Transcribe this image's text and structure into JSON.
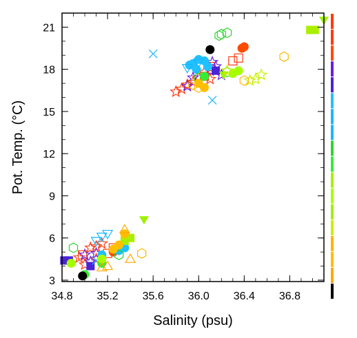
{
  "chart_data": {
    "type": "scatter",
    "xlabel": "Salinity (psu)",
    "ylabel": "Pot. Temp. (°C)",
    "xlim": [
      34.8,
      37.1
    ],
    "ylim": [
      2.9,
      22
    ],
    "xticks": [
      "34.8",
      "35.2",
      "35.6",
      "36.0",
      "36.4",
      "36.8"
    ],
    "yticks": [
      "3",
      "6",
      "9",
      "12",
      "15",
      "18",
      "21"
    ],
    "xtick_values": [
      34.8,
      35.2,
      35.6,
      36.0,
      36.4,
      36.8
    ],
    "ytick_values": [
      3,
      6,
      9,
      12,
      15,
      18,
      21
    ],
    "grid": false,
    "legend_position": "right, outside plot (tiny color swatches)",
    "series": [
      {
        "name": "",
        "color": "#ff3b10",
        "marker": "star",
        "points": [
          [
            35.05,
            5.3
          ],
          [
            35.1,
            5.4
          ],
          [
            35.0,
            4.1
          ],
          [
            34.95,
            4.6
          ],
          [
            35.15,
            5.6
          ],
          [
            35.1,
            4.5
          ],
          [
            35.85,
            16.6
          ],
          [
            35.95,
            17.1
          ],
          [
            36.05,
            17.8
          ],
          [
            36.1,
            17.3
          ],
          [
            35.8,
            16.4
          ],
          [
            35.9,
            16.9
          ],
          [
            36.0,
            17.4
          ]
        ]
      },
      {
        "name": "",
        "color": "#ff3b10",
        "marker": "open-square",
        "points": [
          [
            35.2,
            4.9
          ],
          [
            35.25,
            5.3
          ],
          [
            34.98,
            4.8
          ],
          [
            36.35,
            18.8
          ],
          [
            36.05,
            17.5
          ],
          [
            36.1,
            18.2
          ],
          [
            36.3,
            18.6
          ]
        ]
      },
      {
        "name": "",
        "color": "#ff4a00",
        "marker": "filled-circle",
        "points": [
          [
            36.4,
            19.6
          ],
          [
            35.25,
            5.0
          ],
          [
            36.38,
            19.5
          ]
        ]
      },
      {
        "name": "",
        "color": "#6a1fe0",
        "marker": "star",
        "points": [
          [
            35.0,
            4.8
          ],
          [
            35.05,
            4.3
          ],
          [
            35.1,
            4.9
          ],
          [
            35.95,
            17.4
          ],
          [
            36.1,
            17.9
          ],
          [
            36.15,
            18.2
          ],
          [
            35.9,
            16.8
          ],
          [
            36.2,
            17.6
          ],
          [
            36.12,
            18.5
          ]
        ]
      },
      {
        "name": "",
        "color": "#4a22d8",
        "marker": "filled-square",
        "points": [
          [
            34.82,
            4.4
          ],
          [
            34.86,
            4.4
          ],
          [
            35.05,
            4.0
          ],
          [
            36.15,
            17.9
          ]
        ]
      },
      {
        "name": "",
        "color": "#21c0ff",
        "marker": "filled-circle",
        "points": [
          [
            35.3,
            5.1
          ],
          [
            35.35,
            5.3
          ],
          [
            35.15,
            4.8
          ],
          [
            35.95,
            18.4
          ],
          [
            36.0,
            18.7
          ],
          [
            36.05,
            18.6
          ],
          [
            36.08,
            18.2
          ],
          [
            35.98,
            18.0
          ],
          [
            35.92,
            18.3
          ]
        ]
      },
      {
        "name": "",
        "color": "#19b7ff",
        "marker": "open-triangle-down",
        "points": [
          [
            35.15,
            6.1
          ],
          [
            35.2,
            6.3
          ],
          [
            35.1,
            5.8
          ],
          [
            35.9,
            18.1
          ],
          [
            36.0,
            18.5
          ]
        ]
      },
      {
        "name": "",
        "color": "#19b7ff",
        "marker": "x",
        "points": [
          [
            35.6,
            19.1
          ],
          [
            36.12,
            15.8
          ],
          [
            35.1,
            4.4
          ]
        ]
      },
      {
        "name": "",
        "color": "#2dd62d",
        "marker": "open-hexagon",
        "points": [
          [
            36.2,
            20.5
          ],
          [
            36.25,
            20.6
          ],
          [
            36.18,
            20.4
          ],
          [
            34.9,
            5.3
          ],
          [
            35.3,
            4.8
          ],
          [
            36.0,
            17.4
          ],
          [
            36.25,
            17.8
          ]
        ]
      },
      {
        "name": "",
        "color": "#33ee33",
        "marker": "filled-circle",
        "points": [
          [
            35.0,
            3.4
          ],
          [
            35.15,
            4.2
          ],
          [
            36.05,
            17.5
          ]
        ]
      },
      {
        "name": "",
        "color": "#aaee00",
        "marker": "filled-square",
        "points": [
          [
            36.98,
            20.8
          ],
          [
            37.02,
            20.8
          ],
          [
            35.35,
            5.8
          ],
          [
            35.4,
            6.0
          ]
        ]
      },
      {
        "name": "",
        "color": "#a6ff00",
        "marker": "filled-circle",
        "points": [
          [
            36.35,
            17.9
          ],
          [
            36.3,
            17.7
          ],
          [
            35.15,
            4.5
          ],
          [
            34.88,
            4.2
          ]
        ]
      },
      {
        "name": "",
        "color": "#a0f000",
        "marker": "filled-triangle-down",
        "points": [
          [
            35.52,
            7.3
          ],
          [
            37.1,
            21.5
          ],
          [
            36.22,
            17.6
          ]
        ]
      },
      {
        "name": "",
        "color": "#c8f000",
        "marker": "open-star",
        "points": [
          [
            36.55,
            17.6
          ],
          [
            36.5,
            17.3
          ],
          [
            36.45,
            17.2
          ],
          [
            36.25,
            17.9
          ]
        ]
      },
      {
        "name": "",
        "color": "#ffb400",
        "marker": "open-hexagon",
        "points": [
          [
            36.4,
            17.2
          ],
          [
            36.75,
            18.9
          ],
          [
            35.5,
            4.9
          ],
          [
            35.95,
            16.9
          ],
          [
            36.0,
            16.7
          ]
        ]
      },
      {
        "name": "",
        "color": "#ffbe00",
        "marker": "filled-circle",
        "points": [
          [
            35.25,
            5.2
          ],
          [
            35.3,
            5.5
          ],
          [
            35.35,
            6.3
          ],
          [
            36.05,
            16.7
          ],
          [
            36.0,
            17.0
          ]
        ]
      },
      {
        "name": "",
        "color": "#ffa800",
        "marker": "open-triangle-up",
        "points": [
          [
            35.35,
            6.6
          ],
          [
            35.4,
            4.5
          ],
          [
            35.15,
            3.9
          ],
          [
            35.2,
            4.0
          ]
        ]
      },
      {
        "name": "",
        "color": "#000000",
        "marker": "filled-circle",
        "points": [
          [
            36.1,
            19.4
          ],
          [
            34.98,
            3.3
          ]
        ]
      }
    ]
  }
}
